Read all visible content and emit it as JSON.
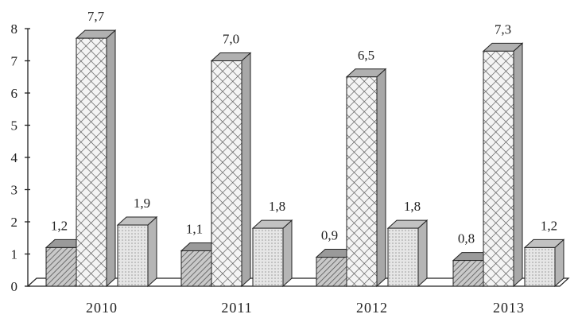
{
  "chart_data": {
    "type": "bar",
    "title": "",
    "xlabel": "",
    "ylabel": "",
    "ylim": [
      0,
      8
    ],
    "y_ticks": [
      "0",
      "1",
      "2",
      "3",
      "4",
      "5",
      "6",
      "7",
      "8"
    ],
    "categories": [
      "2010",
      "2011",
      "2012",
      "2013"
    ],
    "series": [
      {
        "values": [
          1.2,
          1.1,
          0.9,
          0.8
        ],
        "labels": [
          "1,2",
          "1,1",
          "0,9",
          "0,8"
        ],
        "pattern": "diagonal-hatch"
      },
      {
        "values": [
          7.7,
          7.0,
          6.5,
          7.3
        ],
        "labels": [
          "7,7",
          "7,0",
          "6,5",
          "7,3"
        ],
        "pattern": "crosshatch"
      },
      {
        "values": [
          1.9,
          1.8,
          1.8,
          1.2
        ],
        "labels": [
          "1,9",
          "1,8",
          "1,8",
          "1,2"
        ],
        "pattern": "dotted"
      }
    ],
    "three_d": true,
    "grid": false,
    "legend": "none"
  }
}
